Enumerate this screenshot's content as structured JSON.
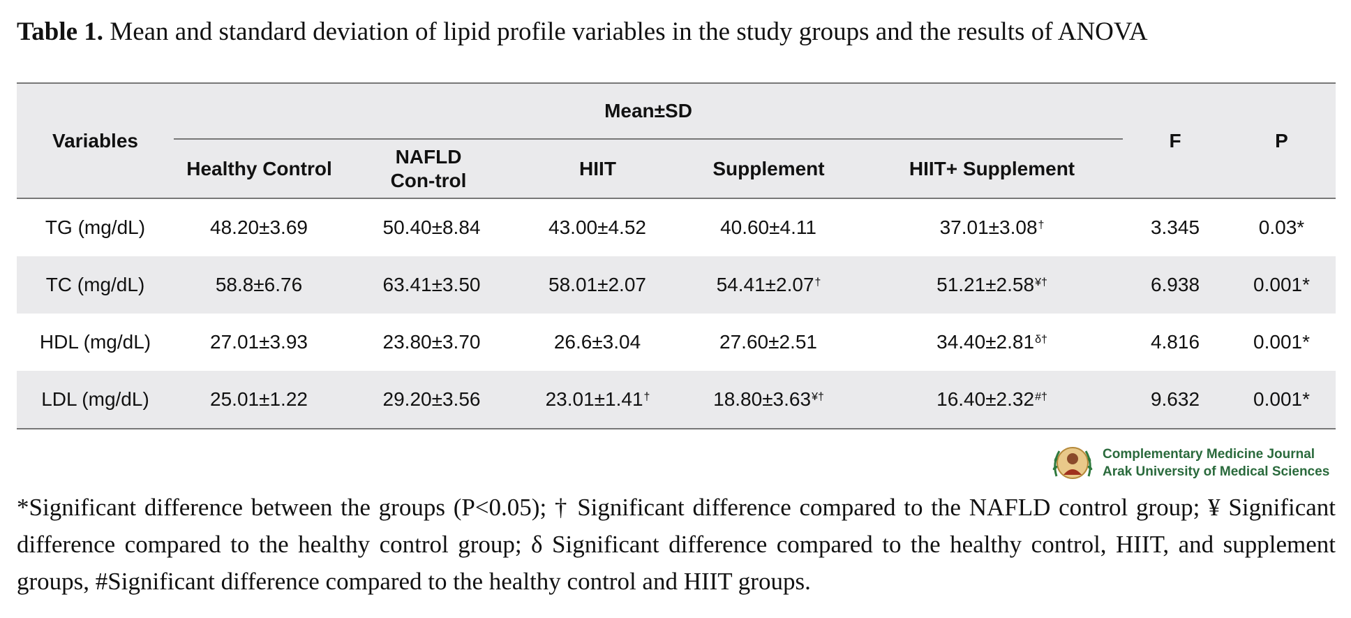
{
  "caption": {
    "label": "Table 1.",
    "text": "Mean and standard deviation of lipid profile variables in the study groups and the results of ANOVA"
  },
  "table": {
    "headers": {
      "variables": "Variables",
      "group_title": "Mean±SD",
      "f": "F",
      "p": "P",
      "groups": [
        "Healthy Control",
        "NAFLD Con-trol",
        "HIIT",
        "Supplement",
        "HIIT+ Supplement"
      ]
    },
    "rows": [
      {
        "variable": "TG (mg/dL)",
        "values": [
          {
            "value": "48.20±3.69",
            "marks": ""
          },
          {
            "value": "50.40±8.84",
            "marks": ""
          },
          {
            "value": "43.00±4.52",
            "marks": ""
          },
          {
            "value": "40.60±4.11",
            "marks": ""
          },
          {
            "value": "37.01±3.08",
            "marks": "†"
          }
        ],
        "f": "3.345",
        "p": "0.03*"
      },
      {
        "variable": "TC (mg/dL)",
        "values": [
          {
            "value": "58.8±6.76",
            "marks": ""
          },
          {
            "value": "63.41±3.50",
            "marks": ""
          },
          {
            "value": "58.01±2.07",
            "marks": ""
          },
          {
            "value": "54.41±2.07",
            "marks": "†"
          },
          {
            "value": "51.21±2.58",
            "marks": "¥†"
          }
        ],
        "f": "6.938",
        "p": "0.001*"
      },
      {
        "variable": "HDL (mg/dL)",
        "values": [
          {
            "value": "27.01±3.93",
            "marks": ""
          },
          {
            "value": "23.80±3.70",
            "marks": ""
          },
          {
            "value": "26.6±3.04",
            "marks": ""
          },
          {
            "value": "27.60±2.51",
            "marks": ""
          },
          {
            "value": "34.40±2.81",
            "marks": "δ†"
          }
        ],
        "f": "4.816",
        "p": "0.001*"
      },
      {
        "variable": "LDL (mg/dL)",
        "values": [
          {
            "value": "25.01±1.22",
            "marks": ""
          },
          {
            "value": "29.20±3.56",
            "marks": ""
          },
          {
            "value": "23.01±1.41",
            "marks": "†"
          },
          {
            "value": "18.80±3.63",
            "marks": "¥†"
          },
          {
            "value": "16.40±2.32",
            "marks": "#†"
          }
        ],
        "f": "9.632",
        "p": "0.001*"
      }
    ]
  },
  "logo": {
    "line1": "Complementary Medicine Journal",
    "line2": "Arak University of Medical Sciences"
  },
  "footnote": {
    "line1": "*Significant difference between the groups (P<0.05); † Significant difference compared to the NAFLD control group; ¥ Significant",
    "line2": "difference compared to the healthy control group; δ Significant difference compared to the healthy control, HIIT, and supplement",
    "line3": "groups, #Significant difference compared to the healthy control and HIIT groups."
  }
}
